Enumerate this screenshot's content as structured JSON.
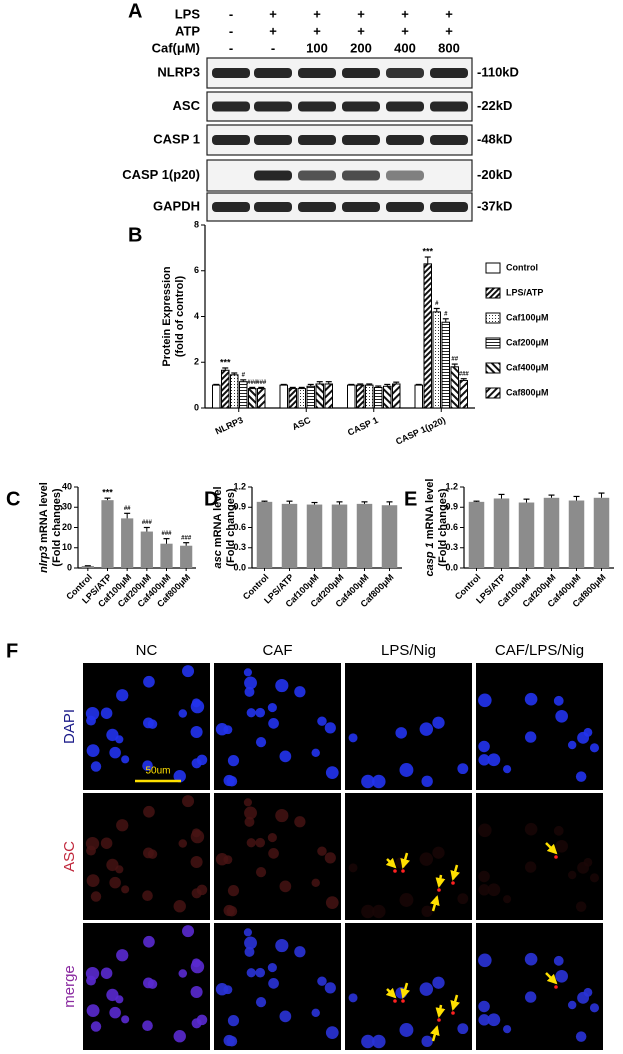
{
  "panel_labels": [
    "A",
    "B",
    "C",
    "D",
    "E",
    "F"
  ],
  "blot": {
    "treatments": [
      {
        "name": "LPS",
        "lanes": [
          "-",
          "+",
          "+",
          "+",
          "+",
          "+"
        ]
      },
      {
        "name": "ATP",
        "lanes": [
          "-",
          "+",
          "+",
          "+",
          "+",
          "+"
        ]
      },
      {
        "name": "Caf(μM)",
        "lanes": [
          "-",
          "-",
          "100",
          "200",
          "400",
          "800"
        ]
      }
    ],
    "proteins": [
      {
        "name": "NLRP3",
        "size": "-110kD"
      },
      {
        "name": "ASC",
        "size": "-22kD"
      },
      {
        "name": "CASP 1",
        "size": "-48kD"
      },
      {
        "name": "CASP 1(p20)",
        "size": "-20kD"
      },
      {
        "name": "GAPDH",
        "size": "-37kD"
      }
    ]
  },
  "chart_data": [
    {
      "type": "grouped-bar",
      "ylabel": "Protein Expression",
      "ylabel2": "(fold of control)",
      "categories": [
        "NLRP3",
        "ASC",
        "CASP 1",
        "CASP 1(p20)"
      ],
      "ylim": [
        0,
        8
      ],
      "yticks": [
        0,
        2,
        4,
        6,
        8
      ],
      "series": [
        {
          "name": "Control",
          "pattern": "none",
          "values": [
            1,
            1,
            1,
            1
          ],
          "errors": [
            0.03,
            0.03,
            0.03,
            0.03
          ],
          "sig": [
            null,
            null,
            null,
            null
          ]
        },
        {
          "name": "LPS/ATP",
          "pattern": "diag",
          "values": [
            1.65,
            0.85,
            1.0,
            6.3
          ],
          "errors": [
            0.1,
            0.05,
            0.05,
            0.3
          ],
          "sig": [
            "***",
            null,
            null,
            "***"
          ]
        },
        {
          "name": "Caf100μM",
          "pattern": "dots",
          "values": [
            1.45,
            0.85,
            1.0,
            4.2
          ],
          "errors": [
            0.08,
            0.05,
            0.05,
            0.15
          ],
          "sig": [
            null,
            null,
            null,
            "#"
          ]
        },
        {
          "name": "Caf200μM",
          "pattern": "hlines",
          "values": [
            1.15,
            0.95,
            0.9,
            3.75
          ],
          "errors": [
            0.08,
            0.08,
            0.06,
            0.15
          ],
          "sig": [
            "#",
            null,
            null,
            "#"
          ]
        },
        {
          "name": "Caf400μM",
          "pattern": "bdiag",
          "values": [
            0.85,
            1.05,
            0.95,
            1.8
          ],
          "errors": [
            0.05,
            0.1,
            0.08,
            0.12
          ],
          "sig": [
            "###",
            null,
            null,
            "##"
          ]
        },
        {
          "name": "Caf800μM",
          "pattern": "diag2",
          "values": [
            0.85,
            1.05,
            1.05,
            1.2
          ],
          "errors": [
            0.05,
            0.1,
            0.08,
            0.08
          ],
          "sig": [
            "###",
            null,
            null,
            "###"
          ]
        }
      ]
    },
    {
      "type": "bar",
      "ylabel_gene": "nlrp3",
      "ylabel": "mRNA level",
      "ylabel2": "(Fold changes)",
      "color": "#8c8c8c",
      "categories": [
        "Control",
        "LPS/ATP",
        "Caf100μM",
        "Caf200μM",
        "Caf400μM",
        "Caf800μM"
      ],
      "values": [
        1,
        33.5,
        24.5,
        18,
        12,
        11
      ],
      "errors": [
        0.1,
        1,
        2.5,
        2,
        2.5,
        1.5
      ],
      "sig": [
        null,
        "***",
        "##",
        "###",
        "###",
        "###"
      ],
      "ylim": [
        0,
        40
      ],
      "yticks": [
        0,
        10,
        20,
        30,
        40
      ]
    },
    {
      "type": "bar",
      "ylabel_gene": "asc",
      "ylabel": "mRNA level",
      "ylabel2": "(Fold changes)",
      "color": "#8c8c8c",
      "categories": [
        "Control",
        "LPS/ATP",
        "Caf100μM",
        "Caf200μM",
        "Caf400μM",
        "Caf800μM"
      ],
      "values": [
        0.98,
        0.95,
        0.94,
        0.94,
        0.95,
        0.93
      ],
      "errors": [
        0.01,
        0.04,
        0.03,
        0.04,
        0.03,
        0.05
      ],
      "sig": [
        null,
        null,
        null,
        null,
        null,
        null
      ],
      "ylim": [
        0,
        1.2
      ],
      "yticks": [
        {
          "value": 0,
          "label": "0.0"
        },
        0.3,
        0.6,
        0.9,
        1.2
      ]
    },
    {
      "type": "bar",
      "ylabel_gene": "casp 1",
      "ylabel": "mRNA level",
      "ylabel2": "(Fold changes)",
      "color": "#8c8c8c",
      "categories": [
        "Control",
        "LPS/ATP",
        "Caf100μM",
        "Caf200μM",
        "Caf400μM",
        "Caf800μM"
      ],
      "values": [
        0.98,
        1.03,
        0.97,
        1.04,
        1.0,
        1.04
      ],
      "errors": [
        0.01,
        0.06,
        0.05,
        0.04,
        0.06,
        0.07
      ],
      "sig": [
        null,
        null,
        null,
        null,
        null,
        null
      ],
      "ylim": [
        0,
        1.2
      ],
      "yticks": [
        {
          "value": 0,
          "label": "0.0"
        },
        0.3,
        0.6,
        0.9,
        1.2
      ]
    }
  ],
  "micrograph": {
    "columns": [
      "NC",
      "CAF",
      "LPS/Nig",
      "CAF/LPS/Nig"
    ],
    "rows": [
      "DAPI",
      "ASC",
      "merge"
    ],
    "scale_bar": "50um"
  }
}
